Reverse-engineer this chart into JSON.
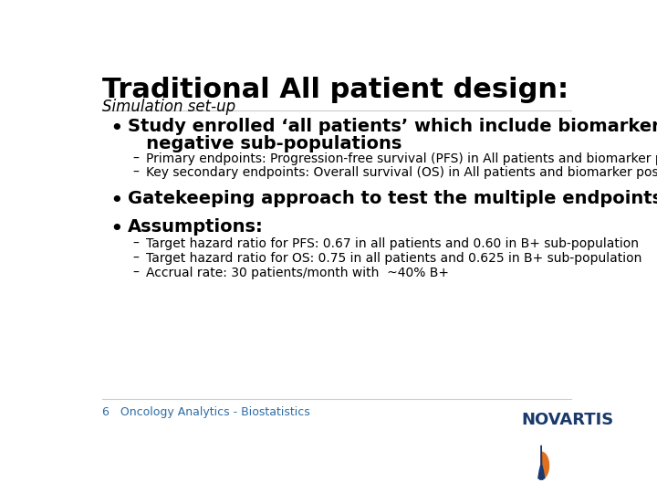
{
  "title": "Traditional All patient design:",
  "subtitle": "Simulation set-up",
  "title_fontsize": 22,
  "subtitle_fontsize": 12,
  "bg_color": "#ffffff",
  "title_color": "#000000",
  "subtitle_color": "#000000",
  "bullet_color": "#000000",
  "bullet1_line1": "Study enrolled ‘all patients’ which include biomarker positive and",
  "bullet1_line2": "   negative sub-populations",
  "bullet1_fontsize": 14,
  "sub1_1": "Primary endpoints: Progression-free survival (PFS) in All patients and biomarker positive",
  "sub1_2": "Key secondary endpoints: Overall survival (OS) in All patients and biomarker positive",
  "sub_fontsize": 10,
  "bullet2_text": "Gatekeeping approach to test the multiple endpoints",
  "bullet2_fontsize": 14,
  "bullet3_text": "Assumptions:",
  "bullet3_fontsize": 14,
  "sub3_1": "Target hazard ratio for PFS: 0.67 in all patients and 0.60 in B+ sub-population",
  "sub3_2": "Target hazard ratio for OS: 0.75 in all patients and 0.625 in B+ sub-population",
  "sub3_3": "Accrual rate: 30 patients/month with  ~40% B+",
  "footer_text": "6   Oncology Analytics - Biostatistics",
  "footer_color": "#2e6da4",
  "footer_fontsize": 9,
  "novartis_text": "NOVARTIS",
  "novartis_color": "#1a3a6b",
  "novartis_fontsize": 13,
  "flame_blue": "#1a3a6b",
  "flame_orange": "#e07020"
}
